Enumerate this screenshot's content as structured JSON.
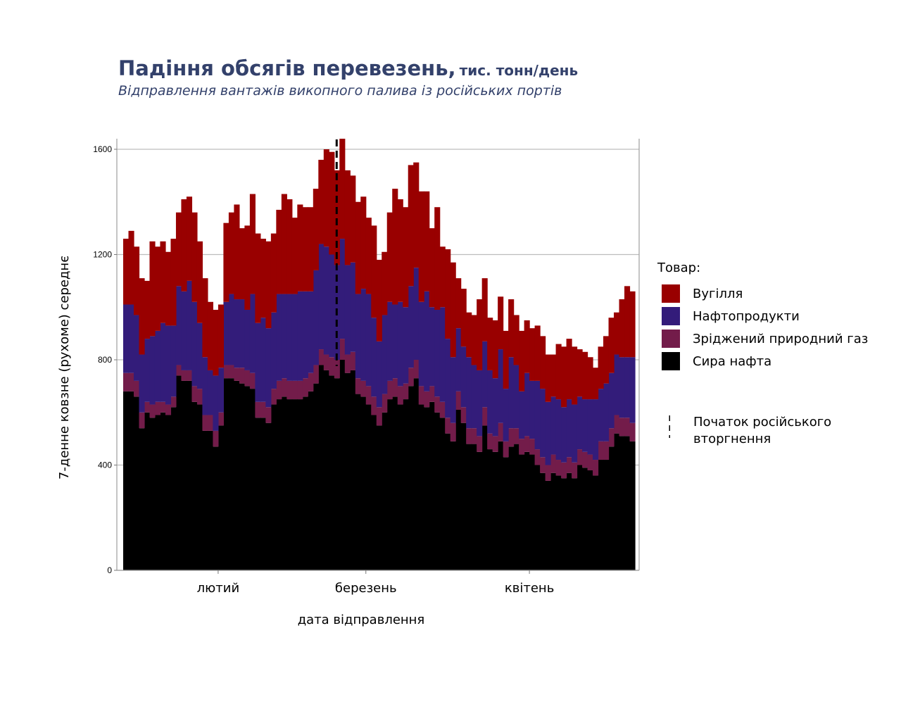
{
  "header": {
    "title": "Падіння обсягів перевезень,",
    "title_unit": "тис. тонн/день",
    "subtitle": "Відправлення вантажів викопного палива із російських портів"
  },
  "legend": {
    "title": "Товар:",
    "items": [
      {
        "label": "Вугілля",
        "color": "#990000"
      },
      {
        "label": "Нафтопродукти",
        "color": "#331c7a"
      },
      {
        "label": "Зріджений природний газ",
        "color": "#731c4a"
      },
      {
        "label": "Сира нафта",
        "color": "#000000"
      }
    ],
    "invasion_label_line1": "Початок російського",
    "invasion_label_line2": "вторгнення"
  },
  "chart_data": {
    "type": "area",
    "stacked": true,
    "step": true,
    "xlabel": "дата відправлення",
    "ylabel": "7-денне ковзне (рухоме) середнє",
    "ylim": [
      0,
      1600
    ],
    "yticks": [
      0,
      400,
      800,
      1200,
      1600
    ],
    "xticks": [
      {
        "label": "лютий",
        "index": 18
      },
      {
        "label": "березень",
        "index": 46
      },
      {
        "label": "квітень",
        "index": 77
      }
    ],
    "invasion_index": 41,
    "grid": true,
    "legend_position": "right",
    "stack_order_bottom_to_top": [
      "Сира нафта",
      "Зріджений природний газ",
      "Нафтопродукти",
      "Вугілля"
    ],
    "series": [
      {
        "name": "Сира нафта",
        "color": "#000000",
        "values": [
          680,
          680,
          660,
          540,
          600,
          580,
          590,
          600,
          590,
          620,
          740,
          720,
          720,
          640,
          630,
          530,
          530,
          470,
          550,
          730,
          730,
          720,
          710,
          700,
          690,
          580,
          580,
          560,
          630,
          650,
          660,
          650,
          650,
          650,
          660,
          680,
          710,
          780,
          760,
          740,
          730,
          800,
          750,
          760,
          670,
          660,
          630,
          590,
          550,
          600,
          650,
          660,
          630,
          650,
          700,
          730,
          630,
          620,
          640,
          600,
          580,
          520,
          490,
          610,
          560,
          480,
          480,
          450,
          550,
          460,
          450,
          490,
          430,
          470,
          480,
          440,
          450,
          440,
          400,
          370,
          340,
          370,
          360,
          350,
          370,
          350,
          400,
          390,
          380,
          360,
          420,
          420,
          470,
          520,
          510,
          510,
          490
        ]
      },
      {
        "name": "Зріджений природний газ",
        "color": "#731c4a",
        "values": [
          70,
          70,
          60,
          60,
          40,
          50,
          50,
          40,
          40,
          40,
          40,
          40,
          40,
          60,
          60,
          60,
          60,
          60,
          50,
          50,
          50,
          50,
          60,
          60,
          60,
          60,
          60,
          60,
          60,
          70,
          70,
          70,
          70,
          70,
          70,
          70,
          70,
          60,
          60,
          70,
          70,
          80,
          70,
          70,
          60,
          60,
          70,
          70,
          70,
          70,
          70,
          70,
          70,
          60,
          70,
          70,
          70,
          60,
          60,
          60,
          60,
          60,
          70,
          70,
          60,
          60,
          60,
          60,
          70,
          60,
          60,
          70,
          60,
          70,
          60,
          60,
          60,
          60,
          60,
          60,
          60,
          70,
          60,
          60,
          60,
          60,
          60,
          60,
          60,
          60,
          70,
          70,
          70,
          70,
          70,
          70,
          70
        ]
      },
      {
        "name": "Нафтопродукти",
        "color": "#331c7a",
        "values": [
          260,
          260,
          250,
          220,
          240,
          260,
          270,
          300,
          300,
          270,
          300,
          300,
          340,
          320,
          250,
          220,
          170,
          210,
          170,
          240,
          270,
          260,
          260,
          230,
          300,
          300,
          320,
          300,
          290,
          330,
          320,
          330,
          330,
          340,
          330,
          310,
          360,
          400,
          410,
          390,
          360,
          380,
          340,
          340,
          320,
          350,
          350,
          300,
          250,
          300,
          300,
          280,
          320,
          290,
          310,
          350,
          320,
          380,
          300,
          330,
          360,
          300,
          250,
          240,
          230,
          270,
          240,
          250,
          250,
          240,
          220,
          280,
          200,
          270,
          240,
          180,
          240,
          220,
          260,
          260,
          240,
          220,
          230,
          210,
          220,
          220,
          200,
          200,
          210,
          230,
          200,
          220,
          210,
          230,
          230,
          230,
          250
        ]
      },
      {
        "name": "Вугілля",
        "color": "#990000",
        "values": [
          250,
          280,
          260,
          290,
          220,
          360,
          320,
          310,
          280,
          330,
          280,
          350,
          320,
          340,
          310,
          300,
          260,
          250,
          240,
          300,
          310,
          360,
          270,
          320,
          380,
          340,
          300,
          330,
          300,
          320,
          380,
          360,
          290,
          330,
          320,
          320,
          310,
          320,
          370,
          390,
          360,
          380,
          360,
          330,
          350,
          350,
          290,
          350,
          310,
          240,
          340,
          440,
          390,
          380,
          460,
          400,
          420,
          380,
          300,
          390,
          230,
          340,
          360,
          190,
          220,
          170,
          190,
          270,
          240,
          200,
          220,
          200,
          220,
          220,
          190,
          230,
          200,
          200,
          210,
          200,
          180,
          160,
          210,
          230,
          230,
          220,
          180,
          180,
          160,
          120,
          160,
          180,
          210,
          160,
          220,
          270,
          250
        ]
      }
    ]
  }
}
